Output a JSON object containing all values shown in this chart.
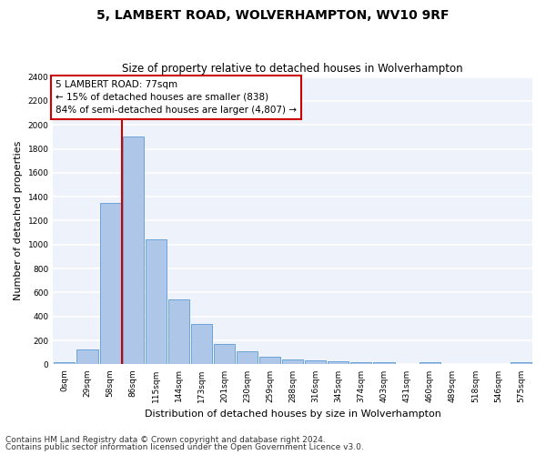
{
  "title": "5, LAMBERT ROAD, WOLVERHAMPTON, WV10 9RF",
  "subtitle": "Size of property relative to detached houses in Wolverhampton",
  "xlabel": "Distribution of detached houses by size in Wolverhampton",
  "ylabel": "Number of detached properties",
  "bar_labels": [
    "0sqm",
    "29sqm",
    "58sqm",
    "86sqm",
    "115sqm",
    "144sqm",
    "173sqm",
    "201sqm",
    "230sqm",
    "259sqm",
    "288sqm",
    "316sqm",
    "345sqm",
    "374sqm",
    "403sqm",
    "431sqm",
    "460sqm",
    "489sqm",
    "518sqm",
    "546sqm",
    "575sqm"
  ],
  "bar_values": [
    15,
    125,
    1350,
    1900,
    1045,
    545,
    340,
    170,
    110,
    65,
    40,
    30,
    25,
    20,
    15,
    0,
    15,
    0,
    0,
    0,
    15
  ],
  "bar_color": "#aec6e8",
  "bar_edgecolor": "#5b9bd5",
  "background_color": "#eef2fa",
  "grid_color": "#ffffff",
  "vline_color": "#cc0000",
  "vline_x": 2.5,
  "ylim": [
    0,
    2400
  ],
  "yticks": [
    0,
    200,
    400,
    600,
    800,
    1000,
    1200,
    1400,
    1600,
    1800,
    2000,
    2200,
    2400
  ],
  "annotation_line1": "5 LAMBERT ROAD: 77sqm",
  "annotation_line2": "← 15% of detached houses are smaller (838)",
  "annotation_line3": "84% of semi-detached houses are larger (4,807) →",
  "annotation_box_color": "#ffffff",
  "annotation_box_edgecolor": "#cc0000",
  "footer1": "Contains HM Land Registry data © Crown copyright and database right 2024.",
  "footer2": "Contains public sector information licensed under the Open Government Licence v3.0.",
  "title_fontsize": 10,
  "subtitle_fontsize": 8.5,
  "ylabel_fontsize": 8,
  "xlabel_fontsize": 8,
  "tick_fontsize": 6.5,
  "annotation_fontsize": 7.5,
  "footer_fontsize": 6.5
}
